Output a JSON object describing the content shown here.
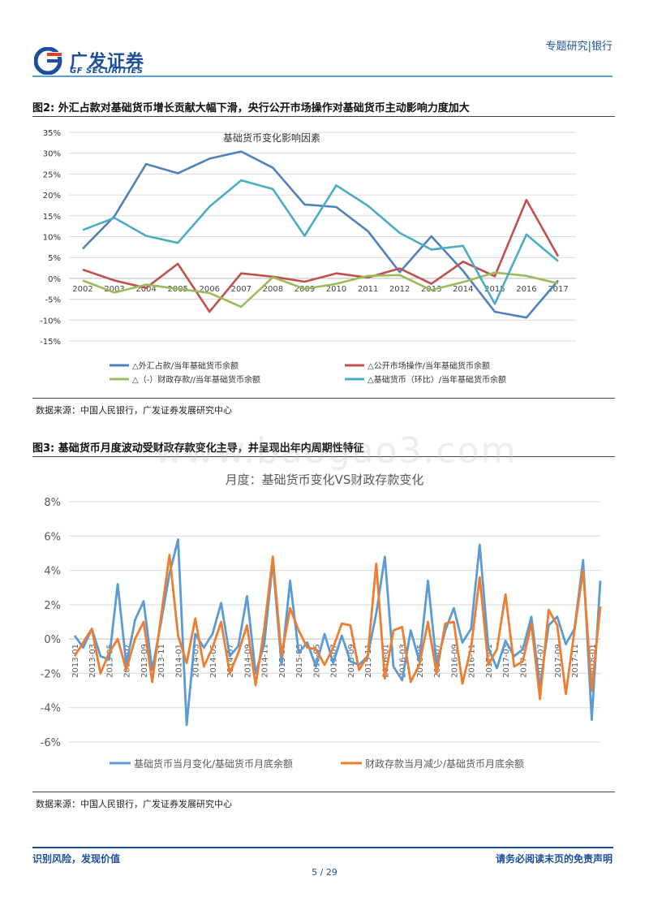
{
  "header": {
    "logo_cn": "广发证券",
    "logo_en": "GF SECURITIES",
    "report_type": "专题研究|银行"
  },
  "watermark": "www.baogao3.com",
  "figure2": {
    "caption": "图2: 外汇占款对基础货币增长贡献大幅下滑，央行公开市场操作对基础货币主动影响力度加大",
    "source": "数据来源：中国人民银行，广发证券发展研究中心"
  },
  "figure3": {
    "caption": "图3: 基础货币月度波动受财政存款变化主导，并呈现出年内周期性特征",
    "source": "数据来源：中国人民银行，广发证券发展研究中心"
  },
  "footer": {
    "left": "识别风险，发现价值",
    "right": "请务必阅读末页的免责声明",
    "page": "5 / 29"
  },
  "chart_data": [
    {
      "type": "line",
      "title": "基础货币变化影响因素",
      "x": [
        "2002",
        "2003",
        "2004",
        "2005",
        "2006",
        "2007",
        "2008",
        "2009",
        "2010",
        "2011",
        "2012",
        "2013",
        "2014",
        "2015",
        "2016",
        "2017"
      ],
      "ylim": [
        -15,
        35
      ],
      "yticks": [
        35,
        30,
        25,
        20,
        15,
        10,
        5,
        0,
        -5,
        -10,
        -15
      ],
      "ytick_suffix": "%",
      "grid": true,
      "legend": "bottom",
      "series": [
        {
          "name": "△外汇占款/当年基础货币余额",
          "color": "#4f81bd",
          "values": [
            7.1,
            14.9,
            27.4,
            25.2,
            28.7,
            30.4,
            26.5,
            17.7,
            17.1,
            11.3,
            1.5,
            10.1,
            1.8,
            -8.0,
            -9.4,
            -0.5
          ]
        },
        {
          "name": "△公开市场操作/当年基础货币余额",
          "color": "#c0504d",
          "values": [
            2.1,
            -0.5,
            -2.3,
            3.5,
            -8.0,
            1.2,
            0.4,
            -0.8,
            1.2,
            0.2,
            2.4,
            -1.3,
            4.0,
            0.5,
            18.8,
            5.3
          ]
        },
        {
          "name": "△（-）财政存款//当年基础货币余额",
          "color": "#9bbb59",
          "values": [
            -0.5,
            -3.4,
            -1.5,
            -2.5,
            -3.5,
            -6.8,
            0.3,
            -2.5,
            -1.3,
            0.6,
            0.8,
            -2.8,
            -0.9,
            1.4,
            0.6,
            -1.2
          ]
        },
        {
          "name": "△基础货币（环比）/当年基础货币余额",
          "color": "#4bacc6",
          "values": [
            11.6,
            14.5,
            10.2,
            8.5,
            17.2,
            23.5,
            21.4,
            10.2,
            22.3,
            17.4,
            10.9,
            6.9,
            7.8,
            -6.1,
            10.5,
            4.1
          ]
        }
      ]
    },
    {
      "type": "line",
      "title": "月度：基础货币变化VS财政存款变化",
      "x": [
        "2013-01",
        "2013-02",
        "2013-03",
        "2013-04",
        "2013-05",
        "2013-06",
        "2013-07",
        "2013-08",
        "2013-09",
        "2013-10",
        "2013-11",
        "2013-12",
        "2014-01",
        "2014-02",
        "2014-03",
        "2014-04",
        "2014-05",
        "2014-06",
        "2014-07",
        "2014-08",
        "2014-09",
        "2014-10",
        "2014-11",
        "2014-12",
        "2015-01",
        "2015-02",
        "2015-03",
        "2015-04",
        "2015-05",
        "2015-06",
        "2015-07",
        "2015-08",
        "2015-09",
        "2015-10",
        "2015-11",
        "2015-12",
        "2016-01",
        "2016-02",
        "2016-03",
        "2016-04",
        "2016-05",
        "2016-06",
        "2016-07",
        "2016-08",
        "2016-09",
        "2016-10",
        "2016-11",
        "2016-12",
        "2017-01",
        "2017-02",
        "2017-03",
        "2017-04",
        "2017-05",
        "2017-06",
        "2017-07",
        "2017-08",
        "2017-09",
        "2017-10",
        "2017-11",
        "2017-12",
        "2018-01",
        "2018-02"
      ],
      "xtick_labels": [
        "2013-01",
        "2013-03",
        "2013-05",
        "2013-07",
        "2013-09",
        "2013-11",
        "2014-01",
        "2014-03",
        "2014-05",
        "2014-07",
        "2014-09",
        "2014-11",
        "2015-01",
        "2015-03",
        "2015-05",
        "2015-07",
        "2015-09",
        "2015-11",
        "2016-01",
        "2016-03",
        "2016-05",
        "2016-07",
        "2016-09",
        "2016-11",
        "2017-01",
        "2017-03",
        "2017-05",
        "2017-07",
        "2017-09",
        "2017-11",
        "2018-01"
      ],
      "ylim": [
        -6,
        8
      ],
      "yticks": [
        8,
        6,
        4,
        2,
        0,
        -2,
        -4,
        -6
      ],
      "ytick_suffix": "%",
      "grid": true,
      "legend": "bottom",
      "series": [
        {
          "name": "基础货币当月变化/基础货币月底余额",
          "color": "#5b9bd5",
          "values": [
            0.2,
            -0.5,
            0.6,
            -1.0,
            -1.2,
            3.2,
            -1.5,
            1.1,
            2.2,
            -1.8,
            0.9,
            3.8,
            5.8,
            -5.0,
            0.3,
            -0.5,
            0.3,
            2.1,
            -1.0,
            -0.4,
            2.5,
            -2.0,
            -0.3,
            4.5,
            -1.5,
            3.4,
            -0.8,
            -0.2,
            -1.6,
            0.3,
            -1.4,
            0.2,
            -1.3,
            -1.5,
            -1.0,
            1.5,
            4.8,
            -1.6,
            -2.4,
            0.5,
            -1.3,
            3.4,
            -1.5,
            0.5,
            1.8,
            -0.2,
            0.6,
            5.5,
            -0.5,
            -1.7,
            -0.1,
            -1.0,
            -0.6,
            1.3,
            -2.8,
            0.8,
            1.3,
            -0.3,
            0.6,
            4.6,
            -4.7,
            3.4
          ]
        },
        {
          "name": "财政存款当月减少/基础货币月底余额",
          "color": "#ed7d31",
          "values": [
            -1.0,
            -0.2,
            0.6,
            -2.0,
            -0.8,
            0.0,
            -1.8,
            0.0,
            1.0,
            -2.5,
            1.2,
            4.9,
            0.2,
            -1.4,
            1.2,
            -1.6,
            -0.5,
            1.0,
            -2.0,
            -0.8,
            0.8,
            -2.7,
            0.6,
            4.8,
            -1.0,
            1.8,
            0.5,
            -0.5,
            -0.6,
            -1.5,
            -0.5,
            0.9,
            0.8,
            -1.8,
            -1.0,
            4.4,
            -2.3,
            0.5,
            0.7,
            -2.5,
            -1.5,
            1.0,
            -2.0,
            0.9,
            1.0,
            -2.6,
            -0.5,
            3.6,
            -1.5,
            -0.6,
            2.6,
            -1.6,
            -1.3,
            0.9,
            -3.5,
            1.7,
            0.8,
            -3.2,
            0.5,
            4.0,
            -3.0,
            1.9
          ]
        }
      ]
    }
  ]
}
